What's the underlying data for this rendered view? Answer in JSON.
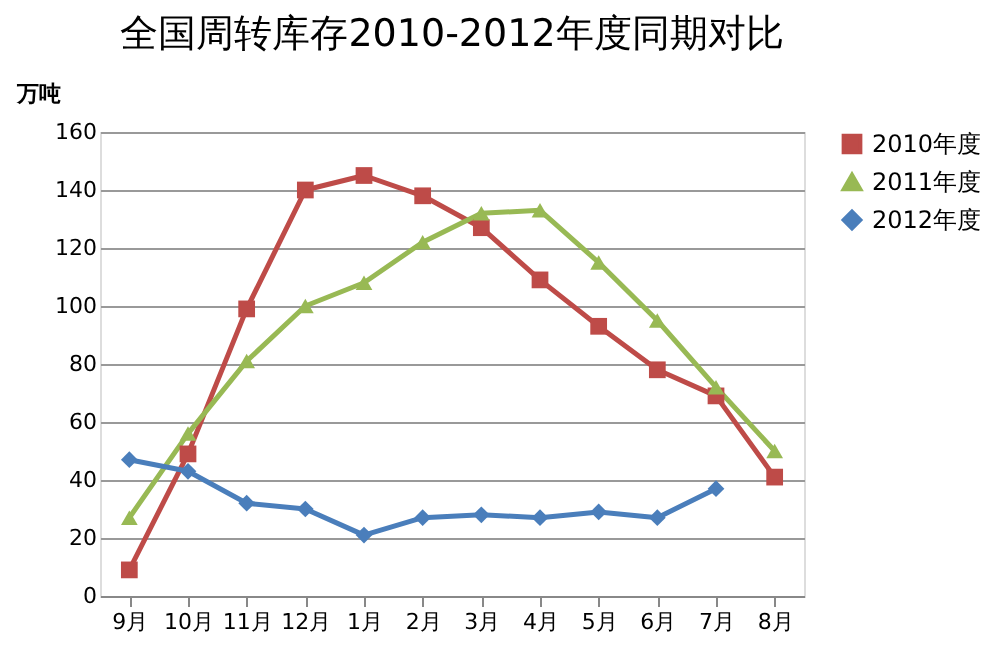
{
  "chart_data": {
    "type": "line",
    "title": "全国周转库存2010-2012年度同期对比",
    "ylabel": "万吨",
    "categories": [
      "9月",
      "10月",
      "11月",
      "12月",
      "1月",
      "2月",
      "3月",
      "4月",
      "5月",
      "6月",
      "7月",
      "8月"
    ],
    "series": [
      {
        "name": "2010年度",
        "color": "#be4b48",
        "marker": "square",
        "values": [
          9,
          49,
          99,
          140,
          145,
          138,
          127,
          109,
          93,
          78,
          69,
          41
        ]
      },
      {
        "name": "2011年度",
        "color": "#98b954",
        "marker": "triangle",
        "values": [
          27,
          56,
          81,
          100,
          108,
          122,
          132,
          133,
          115,
          95,
          72,
          50
        ]
      },
      {
        "name": "2012年度",
        "color": "#4a7ebb",
        "marker": "diamond",
        "values": [
          47,
          43,
          32,
          30,
          21,
          27,
          28,
          27,
          29,
          27,
          37,
          null
        ]
      }
    ],
    "ylim": [
      0,
      160
    ],
    "yticks": [
      0,
      20,
      40,
      60,
      80,
      100,
      120,
      140,
      160
    ],
    "grid": "y",
    "legend": "top right",
    "line_style": "solid"
  }
}
